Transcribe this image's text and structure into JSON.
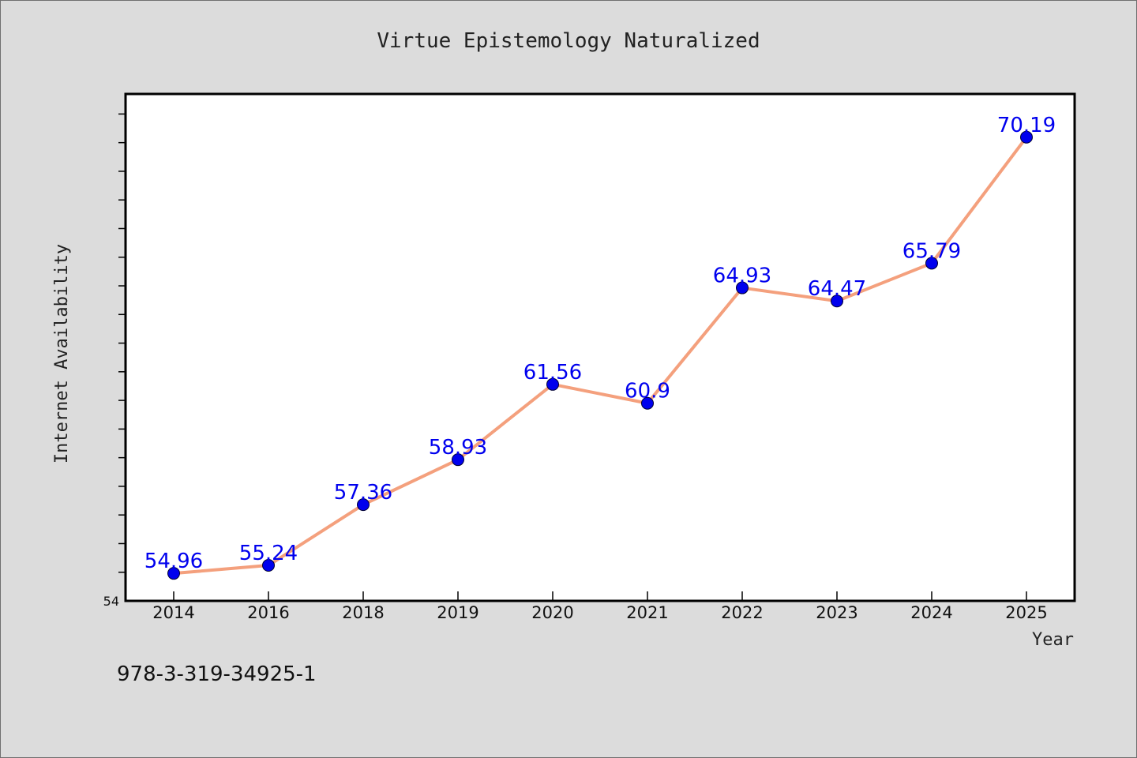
{
  "chart_data": {
    "type": "line",
    "title": "Virtue Epistemology Naturalized",
    "xlabel": "Year",
    "ylabel": "Internet Availability",
    "categories": [
      "2014",
      "2016",
      "2018",
      "2019",
      "2020",
      "2021",
      "2022",
      "2023",
      "2024",
      "2025"
    ],
    "values": [
      54.96,
      55.24,
      57.36,
      58.93,
      61.56,
      60.9,
      64.93,
      64.47,
      65.79,
      70.19
    ],
    "data_labels": [
      "54.96",
      "55.24",
      "57.36",
      "58.93",
      "61.56",
      "60.9",
      "64.93",
      "64.47",
      "65.79",
      "70.19"
    ],
    "ylim": [
      54,
      71.7
    ],
    "y_tick_labels": [
      "54"
    ],
    "y_minor_step": 1,
    "grid": false,
    "line_color": "#f4a07d",
    "marker_color": "#0000ee",
    "label_color": "#0000ee"
  },
  "footer": {
    "isbn": "978-3-319-34925-1"
  }
}
